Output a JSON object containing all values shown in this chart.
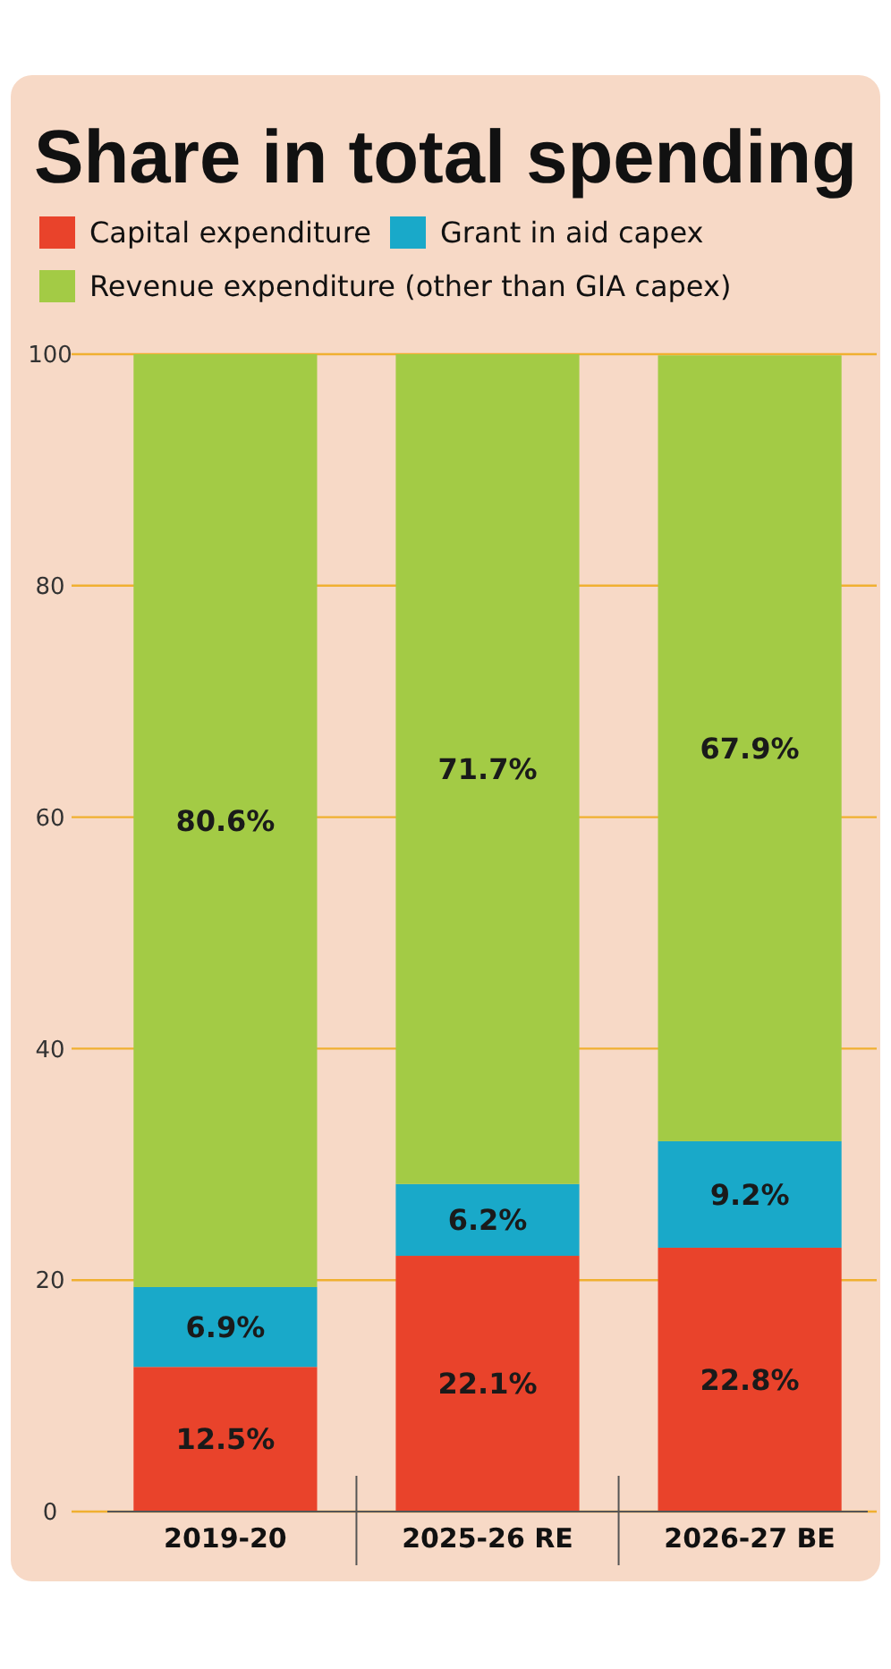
{
  "chart_data": {
    "type": "bar",
    "title": "Share in total spending",
    "stacked": true,
    "categories": [
      "2019-20",
      "2025-26 RE",
      "2026-27 BE"
    ],
    "series": [
      {
        "name": "Capital expenditure",
        "color": "#e9432b",
        "values": [
          12.5,
          22.1,
          22.8
        ],
        "value_labels": [
          "12.5%",
          "22.1%",
          "22.8%"
        ]
      },
      {
        "name": "Grant in aid capex",
        "color": "#19a9c9",
        "values": [
          6.9,
          6.2,
          9.2
        ],
        "value_labels": [
          "6.9%",
          "6.2%",
          "9.2%"
        ]
      },
      {
        "name": "Revenue expenditure (other than GIA capex)",
        "color": "#a3cb45",
        "values": [
          80.6,
          71.7,
          67.9
        ],
        "value_labels": [
          "80.6%",
          "71.7%",
          "67.9%"
        ]
      }
    ],
    "ylim": [
      0,
      100
    ],
    "yticks": [
      0,
      20,
      40,
      60,
      80,
      100
    ],
    "grid": "y",
    "legend": "top"
  }
}
